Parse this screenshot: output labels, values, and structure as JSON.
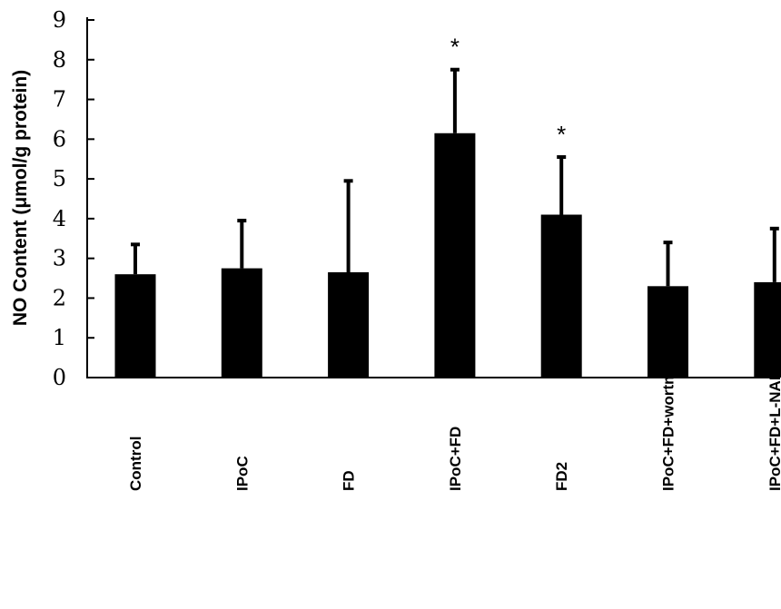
{
  "chart_data": {
    "type": "bar",
    "title": "",
    "xlabel": "",
    "ylabel": "NO Content (μmol/g protein)",
    "ylim": [
      0,
      9
    ],
    "yticks": [
      "0",
      "1",
      "2",
      "3",
      "4",
      "5",
      "6",
      "7",
      "8",
      "9"
    ],
    "grid": false,
    "legend": "none",
    "bar_color": "#000000",
    "categories": [
      "Control",
      "IPoC",
      "FD",
      "IPoC+FD",
      "FD2",
      "IPoC+FD+wortmannin",
      "IPoC+FD+L-NAME"
    ],
    "values": [
      2.6,
      2.75,
      2.65,
      6.15,
      4.1,
      2.3,
      2.4
    ],
    "error_upper": [
      0.75,
      1.2,
      2.3,
      1.6,
      1.45,
      1.1,
      1.35
    ],
    "annotations": [
      "",
      "",
      "",
      "*",
      "*",
      "",
      ""
    ]
  }
}
